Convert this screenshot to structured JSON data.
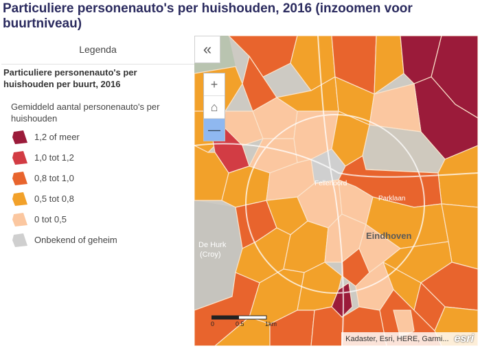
{
  "title": "Particuliere personenauto's per huishouden, 2016 (inzoomen voor buurtniveau)",
  "legend": {
    "header": "Legenda",
    "layer_title": "Particuliere personenauto's per huishouden per buurt, 2016",
    "field_title": "Gemiddeld aantal personenauto's per huishouden",
    "items": [
      {
        "label": "1,2 of meer",
        "color": "#9b1b3a"
      },
      {
        "label": "1,0 tot 1,2",
        "color": "#d23c44"
      },
      {
        "label": "0,8 tot 1,0",
        "color": "#e8642d"
      },
      {
        "label": "0,5 tot 0,8",
        "color": "#f2a12a"
      },
      {
        "label": "0 tot 0,5",
        "color": "#fbc7a0"
      },
      {
        "label": "Onbekend of geheim",
        "color": "#cfcfcf"
      }
    ]
  },
  "controls": {
    "collapse_icon": "«",
    "zoom_in": "+",
    "home_icon": "⌂",
    "zoom_out": "—"
  },
  "map": {
    "place_labels": {
      "center": "Eindhoven",
      "dehurk": "De Hurk",
      "croy": "(Croy)",
      "fellenoord": "Fellenoord",
      "parklaan": "Parklaan"
    },
    "scale": {
      "t0": "0",
      "t1": "0.5",
      "t2": "1km"
    }
  },
  "attribution": {
    "text": "Kadaster, Esri, HERE, Garmi...",
    "logo": "esri"
  }
}
